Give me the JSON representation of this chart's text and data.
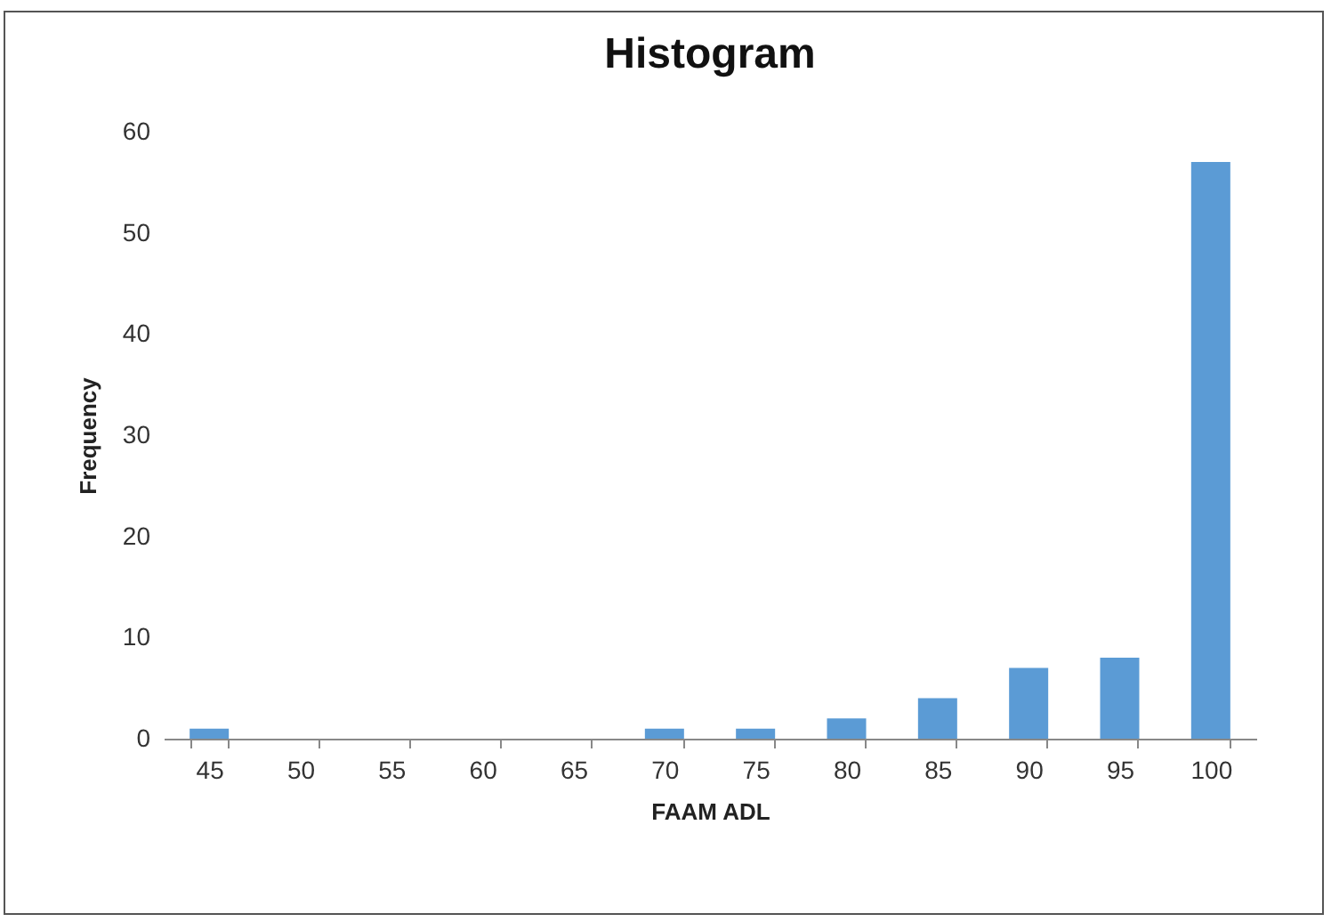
{
  "chart_data": {
    "type": "bar",
    "title": "Histogram",
    "xlabel": "FAAM ADL",
    "ylabel": "Frequency",
    "categories": [
      "45",
      "50",
      "55",
      "60",
      "65",
      "70",
      "75",
      "80",
      "85",
      "90",
      "95",
      "100"
    ],
    "values": [
      1,
      0,
      0,
      0,
      0,
      1,
      1,
      2,
      4,
      7,
      8,
      57
    ],
    "color": "#5b9bd5",
    "ylim": [
      0,
      60
    ],
    "yticks": [
      0,
      10,
      20,
      30,
      40,
      50,
      60
    ],
    "grid": false
  }
}
